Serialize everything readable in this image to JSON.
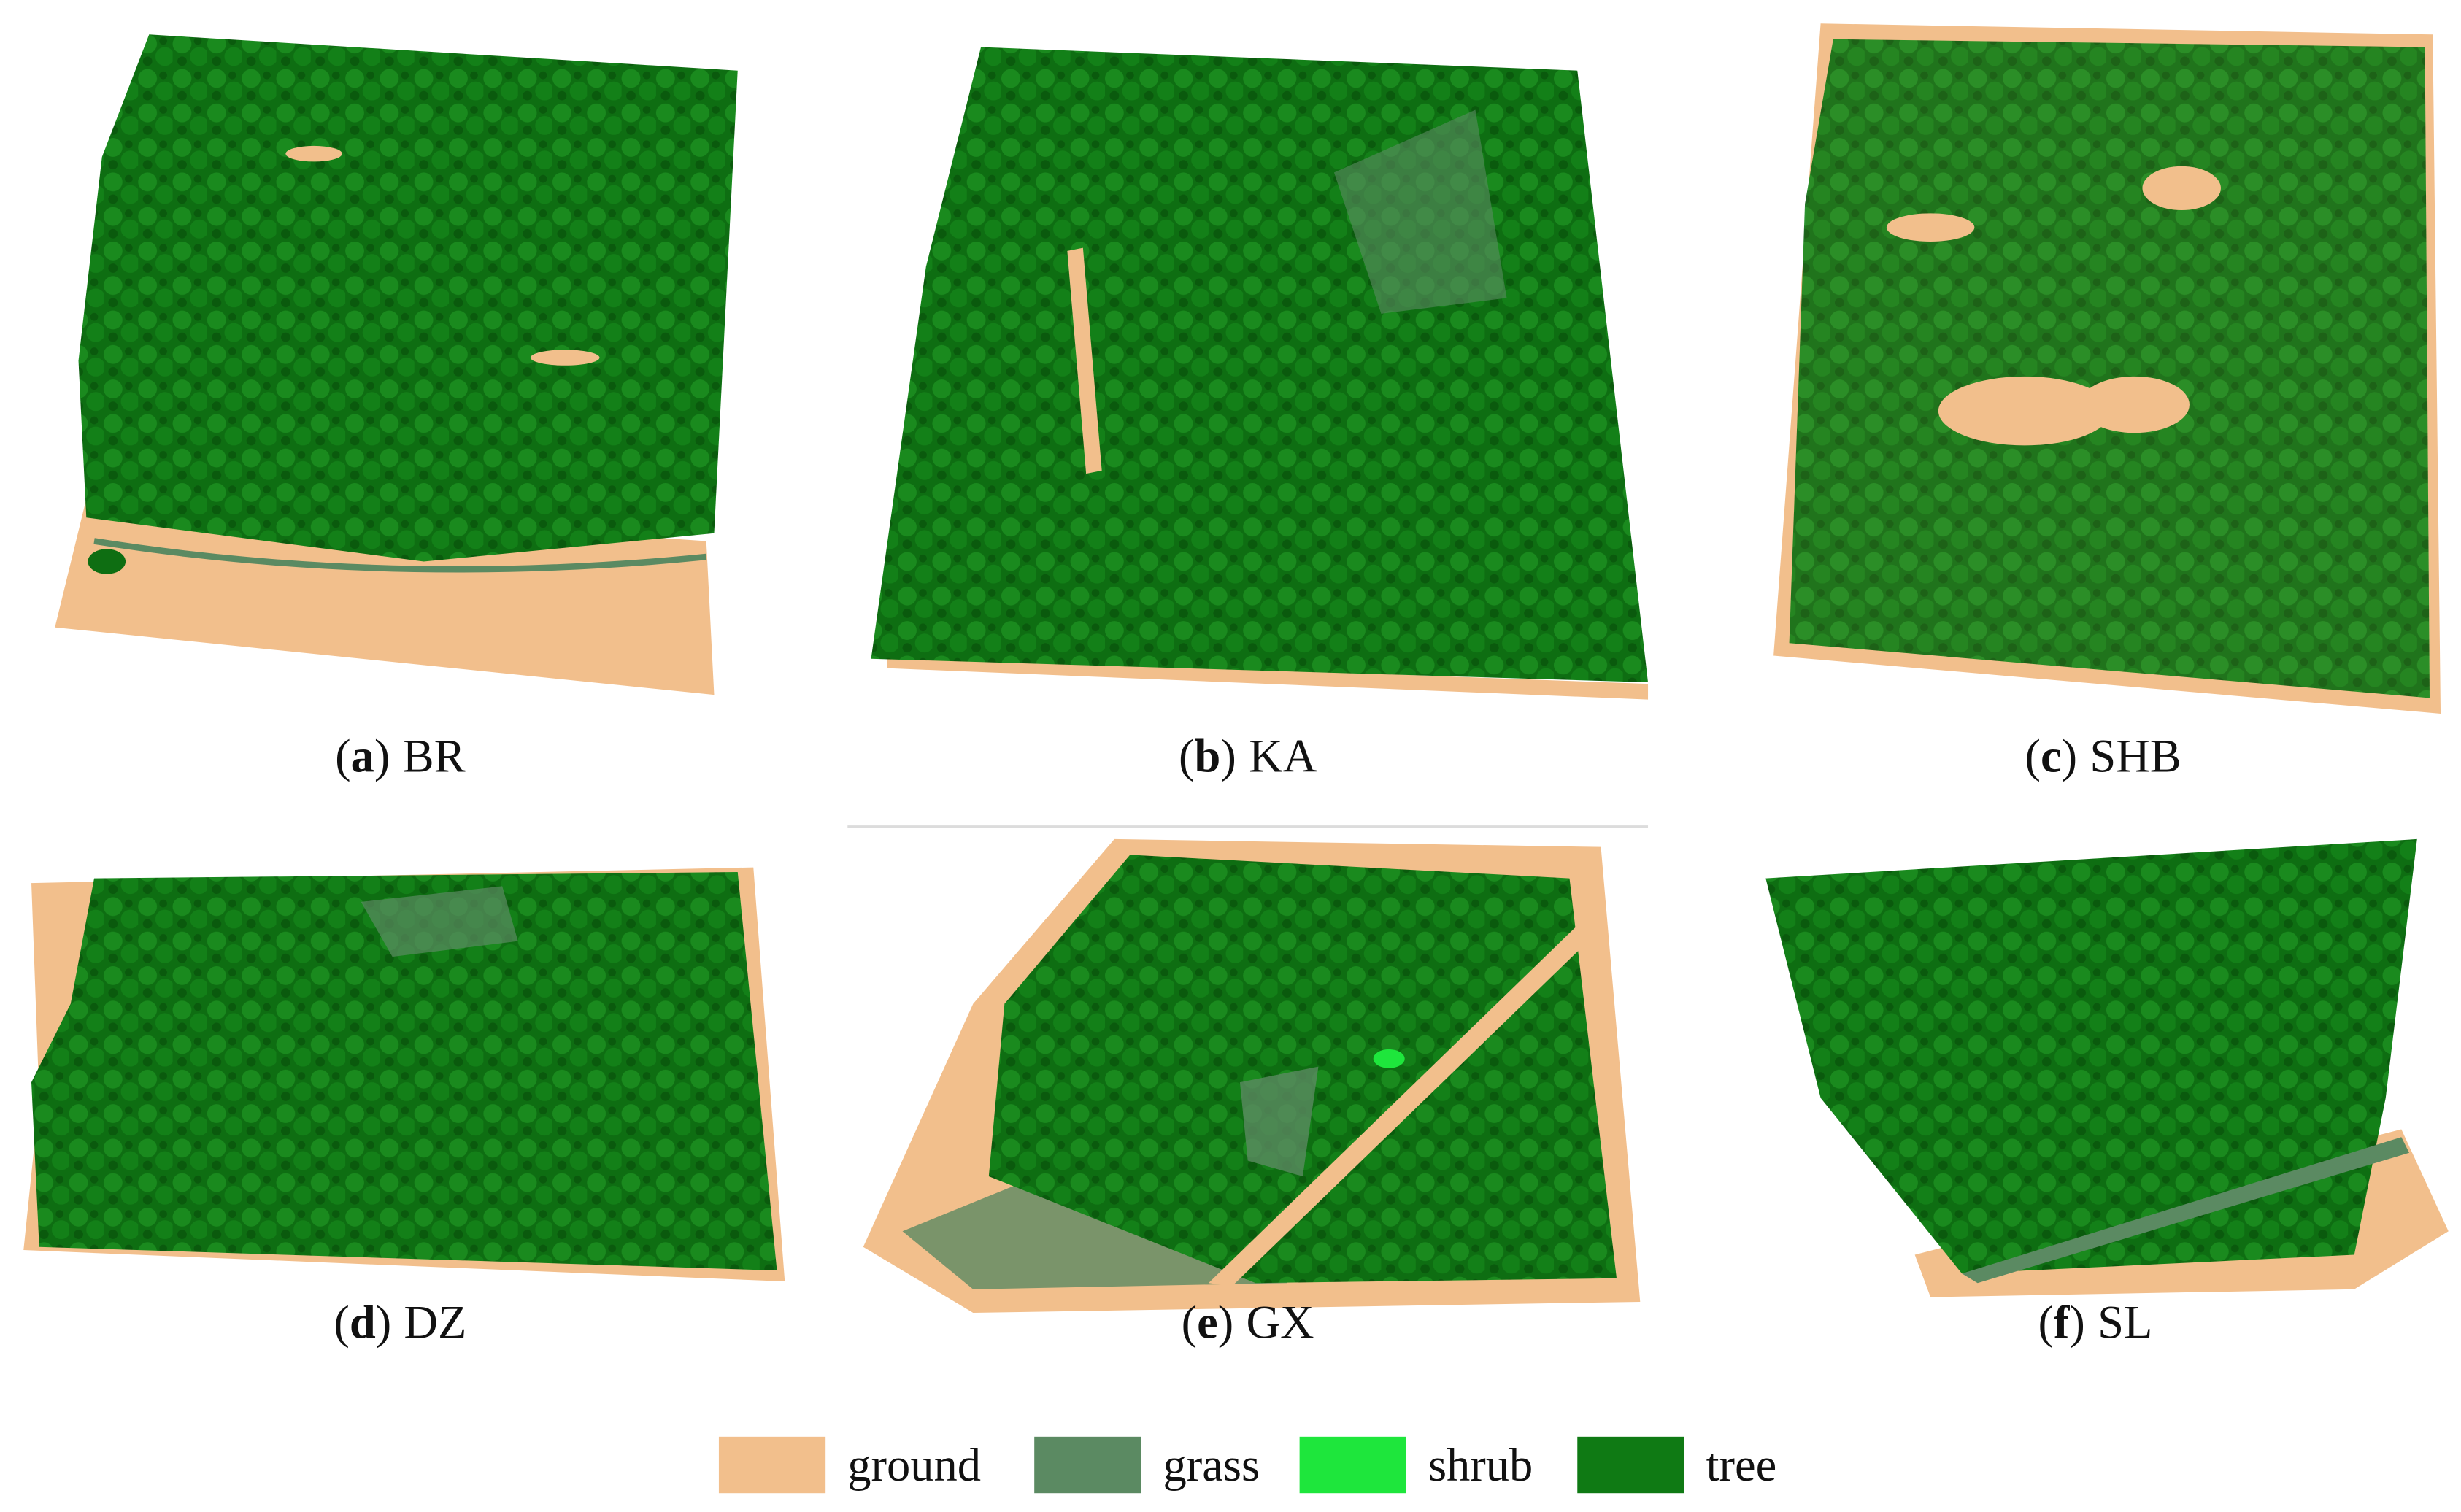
{
  "panels": [
    {
      "caption_parts": [
        "(",
        "a",
        ")",
        "BR"
      ]
    },
    {
      "caption_parts": [
        "(",
        "b",
        ")",
        "KA"
      ]
    },
    {
      "caption_parts": [
        "(",
        "c",
        ")",
        "SHB"
      ]
    },
    {
      "caption_parts": [
        "(",
        "d",
        ")",
        "DZ"
      ]
    },
    {
      "caption_parts": [
        "(",
        "e",
        ")",
        "GX"
      ]
    },
    {
      "caption_parts": [
        "(",
        "f",
        ")",
        "SL"
      ]
    }
  ],
  "legend": [
    {
      "name": "ground",
      "color": "#f2bf8c"
    },
    {
      "name": "grass",
      "color": "#5b8a62"
    },
    {
      "name": "shrub",
      "color": "#1ee63c"
    },
    {
      "name": "tree",
      "color": "#0f7a14"
    }
  ]
}
